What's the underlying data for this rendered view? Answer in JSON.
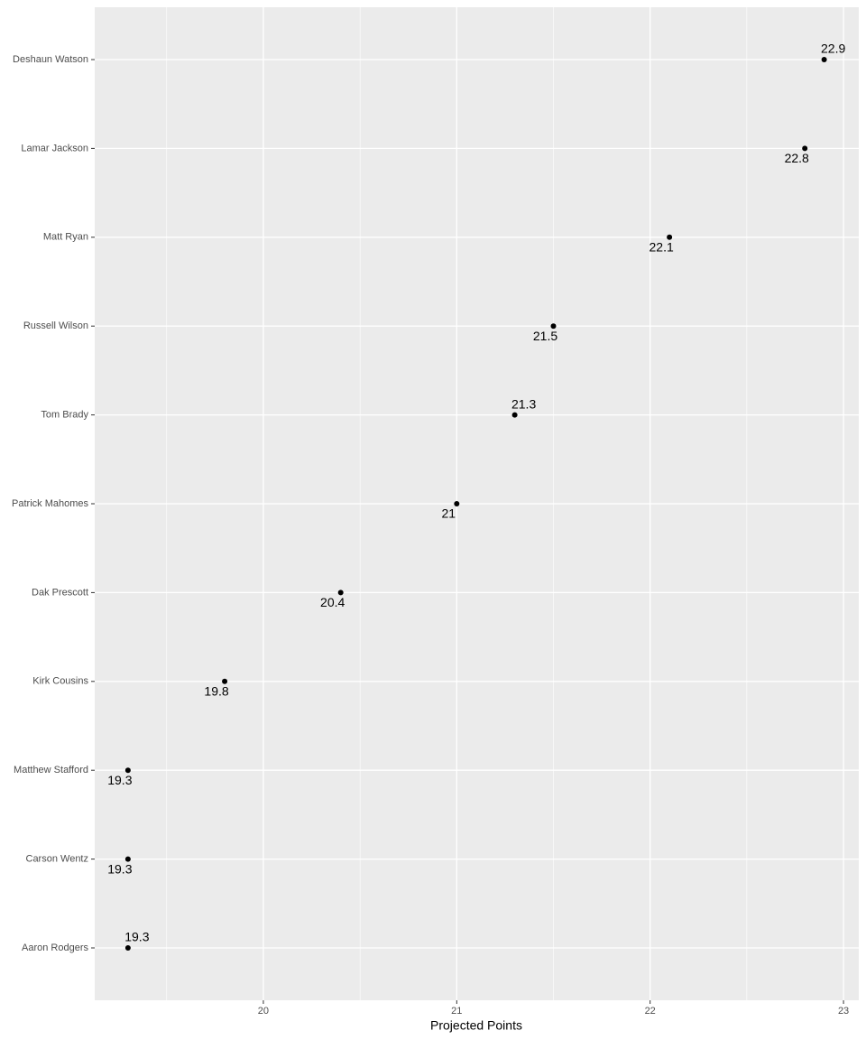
{
  "chart_data": {
    "type": "dot",
    "xlabel": "Projected Points",
    "categories": [
      "Deshaun Watson",
      "Lamar Jackson",
      "Matt Ryan",
      "Russell Wilson",
      "Tom Brady",
      "Patrick Mahomes",
      "Dak Prescott",
      "Kirk Cousins",
      "Matthew Stafford",
      "Carson Wentz",
      "Aaron Rodgers"
    ],
    "values": [
      22.9,
      22.8,
      22.1,
      21.5,
      21.3,
      21,
      20.4,
      19.8,
      19.3,
      19.3,
      19.3
    ],
    "color": "#000000",
    "xlim": [
      19.128,
      23.079
    ],
    "xticks": [
      20,
      21,
      22,
      23
    ],
    "xminor": [
      19.5,
      20.5,
      21.5,
      22.5
    ],
    "grid": true
  }
}
